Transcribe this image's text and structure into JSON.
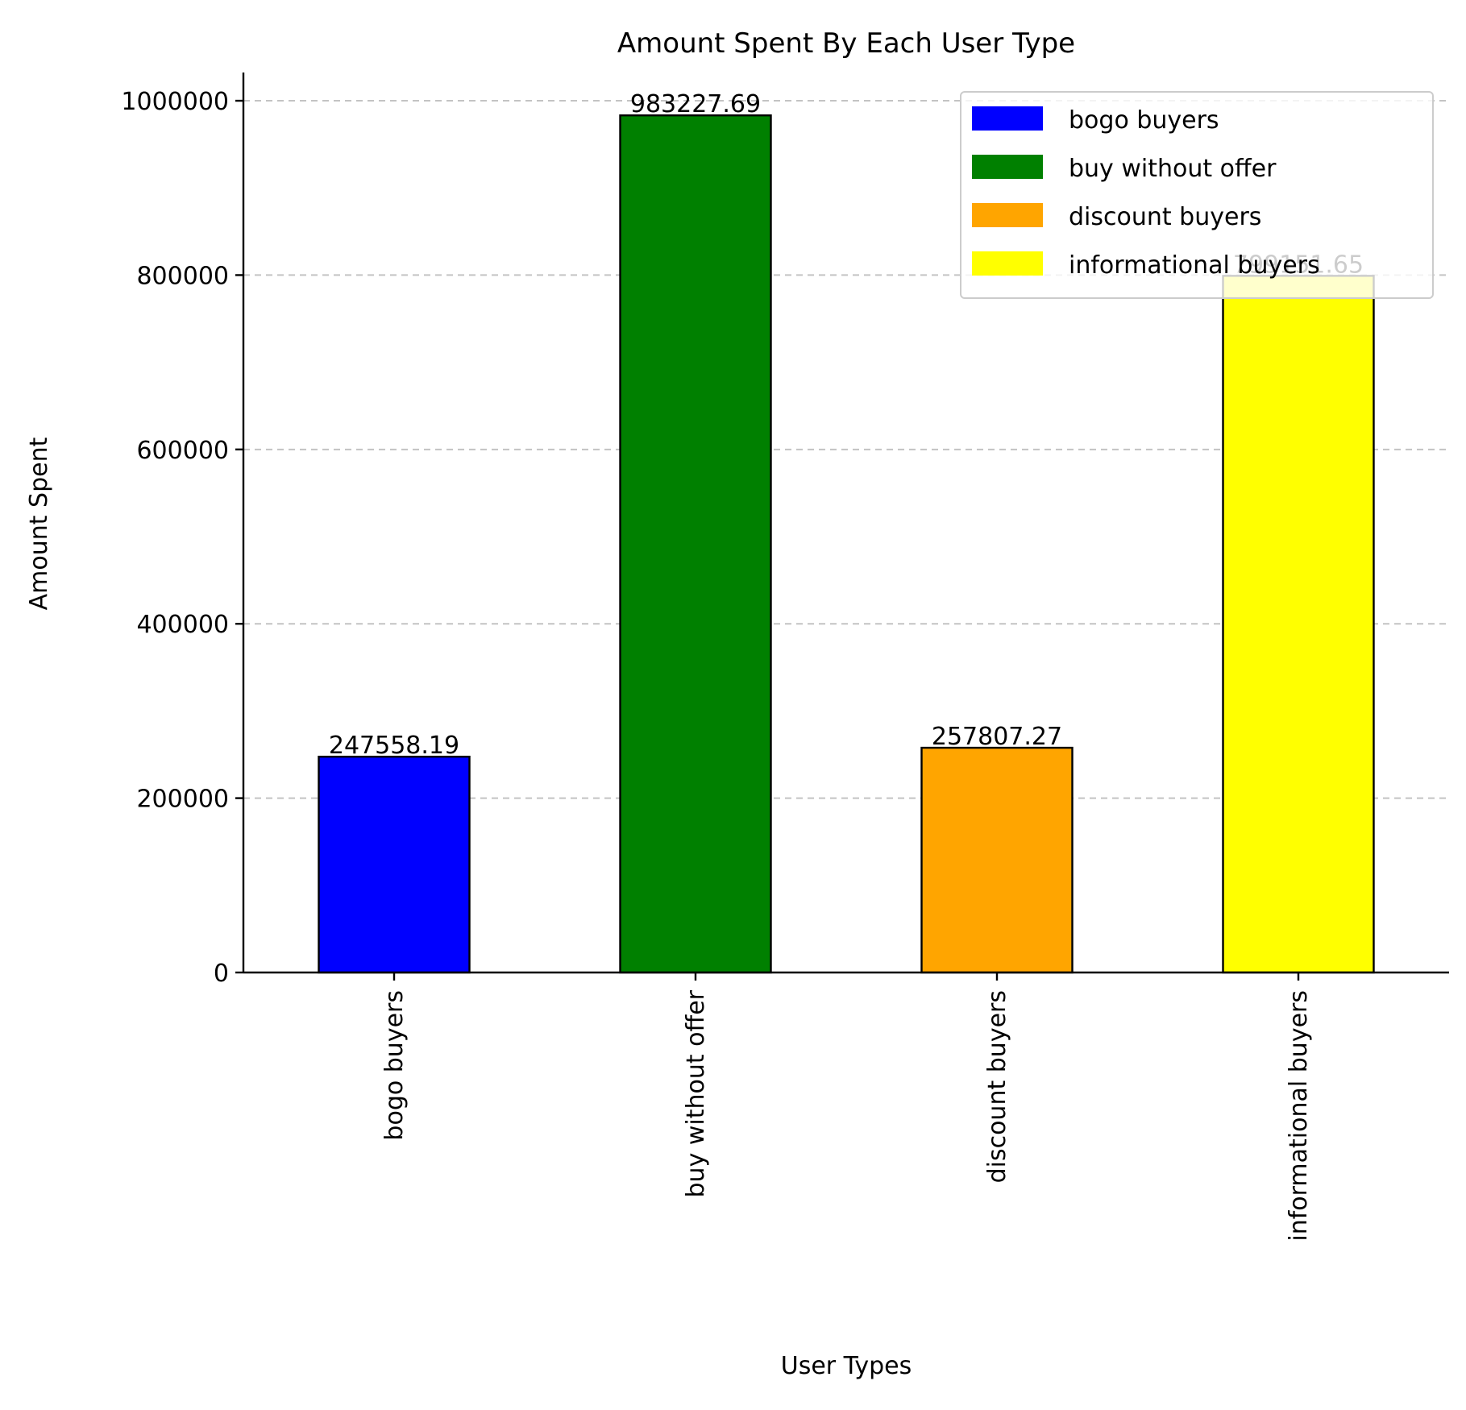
{
  "chart_data": {
    "type": "bar",
    "title": "Amount Spent By Each User Type",
    "xlabel": "User Types",
    "ylabel": "Amount Spent",
    "categories": [
      "bogo buyers",
      "buy without offer",
      "discount buyers",
      "informational buyers"
    ],
    "values": [
      247558.19,
      983227.69,
      257807.27,
      799151.65
    ],
    "value_labels": [
      "247558.19",
      "983227.69",
      "257807.27",
      "799151.65"
    ],
    "colors": [
      "#0000ff",
      "#008000",
      "#ffa500",
      "#ffff00"
    ],
    "ylim": [
      0,
      1032389
    ],
    "yticks": [
      0,
      200000,
      400000,
      600000,
      800000,
      1000000
    ],
    "grid": "y",
    "legend": {
      "placement": "top-right",
      "entries": [
        "bogo buyers",
        "buy without offer",
        "discount buyers",
        "informational buyers"
      ]
    }
  }
}
